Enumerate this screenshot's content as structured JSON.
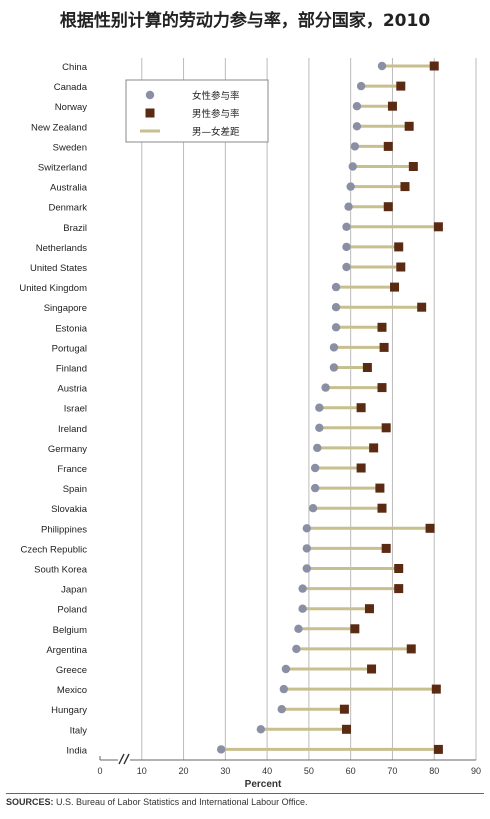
{
  "chart_data": {
    "type": "dumbbell",
    "title": "根据性别计算的劳动力参与率，部分国家，2010",
    "xlabel": "Percent",
    "ylabel": "",
    "xlim": [
      0,
      90
    ],
    "xticks": [
      0,
      10,
      20,
      30,
      40,
      50,
      60,
      70,
      80,
      90
    ],
    "axis_break": "between 0 and 30",
    "grid": "vertical",
    "legend_position": "top-left",
    "colors": {
      "female": "#8a8fa3",
      "male": "#5a2a12",
      "gap": "#c8bf8e",
      "grid": "#bbbbbb"
    },
    "legend": [
      {
        "key": "female",
        "label": "女性参与率",
        "icon": "circle-marker"
      },
      {
        "key": "male",
        "label": "男性参与率",
        "icon": "square-marker"
      },
      {
        "key": "gap",
        "label": "男—女差距",
        "icon": "line-segment"
      }
    ],
    "categories": [
      "China",
      "Canada",
      "Norway",
      "New Zealand",
      "Sweden",
      "Switzerland",
      "Australia",
      "Denmark",
      "Brazil",
      "Netherlands",
      "United States",
      "United Kingdom",
      "Singapore",
      "Estonia",
      "Portugal",
      "Finland",
      "Austria",
      "Israel",
      "Ireland",
      "Germany",
      "France",
      "Spain",
      "Slovakia",
      "Philippines",
      "Czech Republic",
      "South Korea",
      "Japan",
      "Poland",
      "Belgium",
      "Argentina",
      "Greece",
      "Mexico",
      "Hungary",
      "Italy",
      "India"
    ],
    "series": [
      {
        "name": "女性参与率",
        "values": [
          67.5,
          62.5,
          61.5,
          61.5,
          61,
          60.5,
          60,
          59.5,
          59,
          59,
          59,
          56.5,
          56.5,
          56.5,
          56,
          56,
          54,
          52.5,
          52.5,
          52,
          51.5,
          51.5,
          51,
          49.5,
          49.5,
          49.5,
          48.5,
          48.5,
          47.5,
          47,
          44.5,
          44,
          43.5,
          38.5,
          29
        ]
      },
      {
        "name": "男性参与率",
        "values": [
          80,
          72,
          70,
          74,
          69,
          75,
          73,
          69,
          81,
          71.5,
          72,
          70.5,
          77,
          67.5,
          68,
          64,
          67.5,
          62.5,
          68.5,
          65.5,
          62.5,
          67,
          67.5,
          79,
          68.5,
          71.5,
          71.5,
          64.5,
          61,
          74.5,
          65,
          80.5,
          58.5,
          59,
          81
        ]
      }
    ],
    "sources_label": "SOURCES:",
    "sources_text": " U.S. Bureau of Labor Statistics and International Labour Office."
  }
}
